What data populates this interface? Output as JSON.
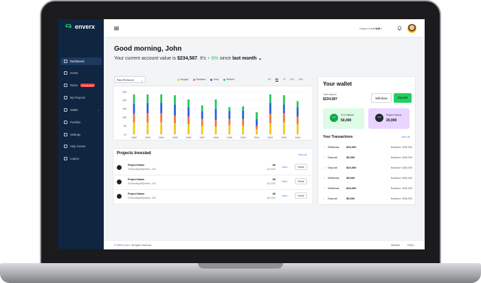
{
  "brand": {
    "name": "enverx"
  },
  "sidebar": {
    "items": [
      {
        "label": "Dashboard",
        "icon": "dashboard-icon",
        "active": true
      },
      {
        "label": "Invest",
        "icon": "cart-icon"
      },
      {
        "label": "Retire",
        "icon": "retire-icon",
        "badge": "Coming Soon"
      },
      {
        "label": "My Projects",
        "icon": "projects-icon"
      },
      {
        "label": "Wallet",
        "icon": "wallet-icon",
        "chevron": "›"
      },
      {
        "label": "Portfolio",
        "icon": "portfolio-icon"
      },
      {
        "label": "Settings",
        "icon": "settings-icon"
      },
      {
        "label": "Help Center",
        "icon": "help-icon"
      },
      {
        "label": "Logout",
        "icon": "logout-icon"
      }
    ]
  },
  "header": {
    "credit_label": "Carbon Credit",
    "credit_value": "$45",
    "credit_chev": "▾"
  },
  "greeting": {
    "title": "Good morning, John",
    "prefix": "Your current account value is ",
    "value": "$234,587",
    "mid": ". It's ",
    "pct": "+ 6%",
    "since": " since ",
    "period": "last month",
    "period_chev": "⌄"
  },
  "chart": {
    "selector": "Rips Redwood",
    "selector_chev": "⌄",
    "legend": [
      {
        "label": "Bought",
        "color": "#f5c518"
      },
      {
        "label": "Realised",
        "color": "#f0733a"
      },
      {
        "label": "Sold",
        "color": "#2b5fd8"
      },
      {
        "label": "Retired",
        "color": "#22c55e"
      }
    ],
    "ranges": [
      "3Y",
      "5Y",
      "7Y",
      "11Y",
      "15Y"
    ],
    "active_range": "5Y"
  },
  "chart_data": {
    "type": "bar",
    "stacked": true,
    "categories": [
      "1992",
      "1993",
      "1994",
      "1995",
      "1996",
      "1997",
      "1998",
      "1999",
      "2000",
      "2001",
      "2002",
      "2003",
      "2004"
    ],
    "series": [
      {
        "name": "Bought",
        "color": "#f5c518",
        "values": [
          70,
          70,
          70,
          65,
          60,
          50,
          45,
          55,
          50,
          30,
          65,
          70,
          60
        ]
      },
      {
        "name": "Realised",
        "color": "#f0733a",
        "values": [
          50,
          55,
          55,
          45,
          45,
          40,
          40,
          35,
          40,
          20,
          55,
          55,
          45
        ]
      },
      {
        "name": "Sold",
        "color": "#2b5fd8",
        "values": [
          60,
          60,
          60,
          65,
          55,
          45,
          65,
          45,
          50,
          40,
          65,
          50,
          55
        ]
      },
      {
        "name": "Retired",
        "color": "#22c55e",
        "values": [
          55,
          50,
          50,
          55,
          45,
          35,
          55,
          25,
          25,
          40,
          50,
          55,
          35
        ]
      }
    ],
    "yticks": [
      10,
      50,
      100,
      150,
      200,
      250
    ],
    "ylim": [
      0,
      250
    ]
  },
  "projects": {
    "title": "Projects Invested",
    "view_all": "View all",
    "items": [
      {
        "name": "Project Name",
        "addr": "0Xhkisafaijkdf9jebaeis...283",
        "amount": "$0",
        "sub": "-$13,000",
        "view": "View",
        "retire": "Retire"
      },
      {
        "name": "Project Name",
        "addr": "0Xhkisafaijkdf9jebaeis...283",
        "amount": "$0",
        "sub": "-$12,000",
        "view": "View",
        "retire": "Retire"
      },
      {
        "name": "Project Name",
        "addr": "0Xhkisafaijkdf9jebaeis...283",
        "amount": "$0",
        "sub": "-$12,000",
        "view": "View",
        "retire": "Retire"
      }
    ]
  },
  "wallet": {
    "title": "Your wallet",
    "balance_label": "Total balance",
    "balance": "$234,587",
    "withdraw": "Withdraw",
    "deposit": "Deposit",
    "vcc_label": "VCC Retired",
    "vcc_value": "50,000",
    "vcc_icon": "VCC",
    "ptok_label": "Project Tokens",
    "ptok_value": "20,000",
    "ptok_icon": "CTP",
    "tx_title": "Your Transactions",
    "tx_view_all": "View all",
    "transactions": [
      {
        "type": "Withdraw",
        "amount": "$20,000",
        "balance": "Balance: $35,000"
      },
      {
        "type": "Deposit",
        "amount": "$5,000",
        "balance": "Balance: $35,000"
      },
      {
        "type": "Deposit",
        "amount": "$20,000",
        "balance": "Balance: $35,000"
      },
      {
        "type": "Withdraw",
        "amount": "$5,000",
        "balance": "Balance: $35,000"
      },
      {
        "type": "Withdraw",
        "amount": "$20,000",
        "balance": "Balance: $35,000"
      },
      {
        "type": "Deposit",
        "amount": "$5,000",
        "balance": "Balance: $35,000"
      }
    ]
  },
  "footer": {
    "copy_prefix": "© 2023 ",
    "copy_brand": "enverx",
    "copy_suffix": ". All rights reserved.",
    "website": "Website",
    "faqs": "FAQ's"
  }
}
